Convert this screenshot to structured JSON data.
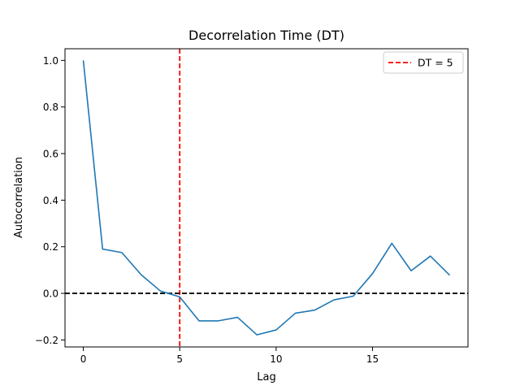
{
  "chart_data": {
    "type": "line",
    "title": "Decorrelation Time (DT)",
    "xlabel": "Lag",
    "ylabel": "Autocorrelation",
    "xlim": [
      -0.95,
      19.95
    ],
    "ylim": [
      -0.23,
      1.05
    ],
    "xticks": [
      0,
      5,
      10,
      15
    ],
    "yticks": [
      -0.2,
      0.0,
      0.2,
      0.4,
      0.6,
      0.8,
      1.0
    ],
    "xtick_labels": [
      "0",
      "5",
      "10",
      "15"
    ],
    "ytick_labels": [
      "−0.2",
      "0.0",
      "0.2",
      "0.4",
      "0.6",
      "0.8",
      "1.0"
    ],
    "grid": false,
    "legend_position": "top-right",
    "series": [
      {
        "color": "#1f77b4",
        "x": [
          0,
          1,
          2,
          3,
          4,
          5,
          6,
          7,
          8,
          9,
          10,
          11,
          12,
          13,
          14,
          15,
          16,
          17,
          18,
          19
        ],
        "y": [
          1.0,
          0.19,
          0.175,
          0.08,
          0.01,
          -0.015,
          -0.118,
          -0.118,
          -0.103,
          -0.178,
          -0.157,
          -0.085,
          -0.072,
          -0.028,
          -0.012,
          0.085,
          0.215,
          0.097,
          0.16,
          0.078
        ]
      }
    ],
    "reference_lines": [
      {
        "orientation": "vertical",
        "value": 5,
        "color": "#ff0000",
        "style": "dashed",
        "label": "DT = 5"
      },
      {
        "orientation": "horizontal",
        "value": 0,
        "color": "#000000",
        "style": "dashed"
      }
    ]
  }
}
